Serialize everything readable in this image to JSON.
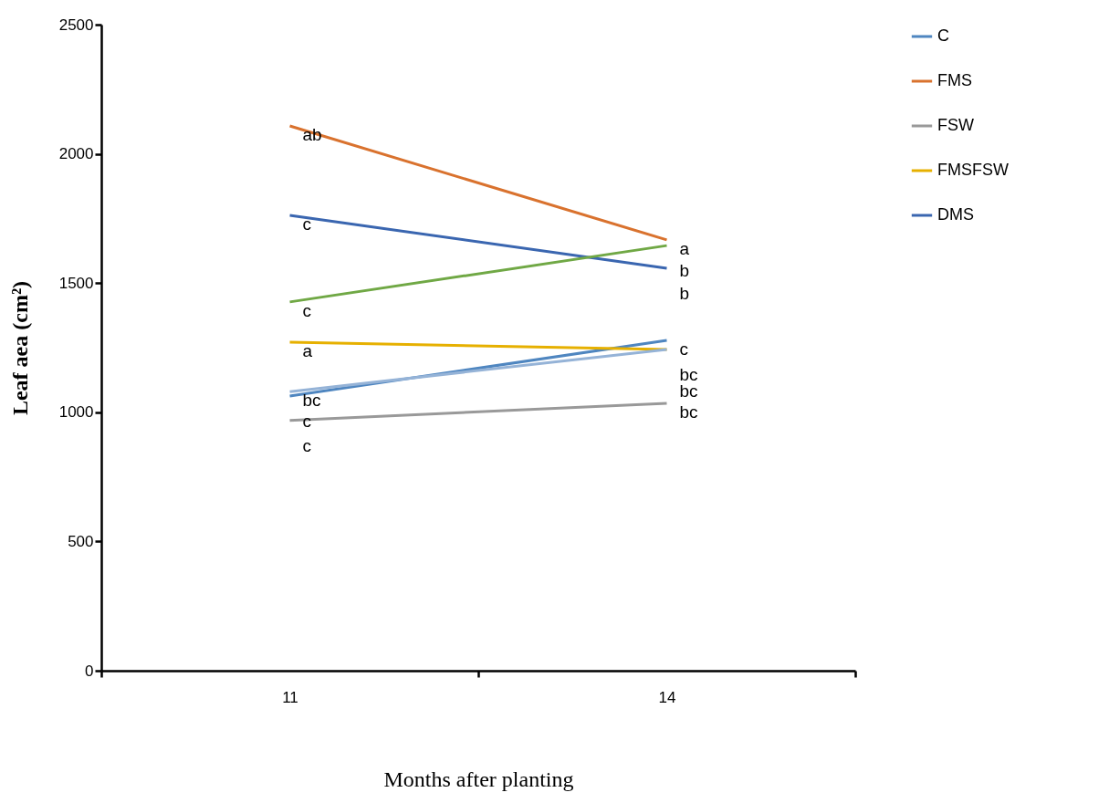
{
  "chart_data": {
    "type": "line",
    "xlabel": "Months after planting",
    "ylabel": "Leaf aea (cm²)",
    "categories": [
      "11",
      "14"
    ],
    "series": [
      {
        "name": "C",
        "color": "#4f86c0",
        "values": [
          1063,
          1278
        ]
      },
      {
        "name": "FMS",
        "color": "#d9722e",
        "values": [
          2108,
          1667
        ]
      },
      {
        "name": "FSW",
        "color": "#999999",
        "values": [
          968,
          1035
        ]
      },
      {
        "name": "FMSFSW",
        "color": "#e6b000",
        "values": [
          1271,
          1243
        ]
      },
      {
        "name": "DMS",
        "color": "#3a66b0",
        "values": [
          1762,
          1557
        ]
      },
      {
        "color": "#70a845",
        "values": [
          1427,
          1645
        ]
      },
      {
        "color": "#95b3d7",
        "values": [
          1080,
          1243
        ]
      }
    ],
    "ylim": [
      0,
      2500
    ],
    "yticks": [
      0,
      500,
      1000,
      1500,
      2000,
      2500
    ],
    "grid": false,
    "legend": "right",
    "marker": "none",
    "line_style": "solid",
    "annotations": [
      {
        "text": "ab",
        "x": "11",
        "y": 2108
      },
      {
        "text": "c",
        "x": "11",
        "y": 1762
      },
      {
        "text": "c",
        "x": "11",
        "y": 1427
      },
      {
        "text": "a",
        "x": "11",
        "y": 1271
      },
      {
        "text": "bc",
        "x": "11",
        "y": 1080
      },
      {
        "text": "c",
        "x": "11",
        "y": 1063
      },
      {
        "text": "c",
        "x": "11",
        "y": 968
      },
      {
        "text": "a",
        "x": "14",
        "y": 1667
      },
      {
        "text": "b",
        "x": "14",
        "y": 1645
      },
      {
        "text": "b",
        "x": "14",
        "y": 1557
      },
      {
        "text": "c",
        "x": "14",
        "y": 1278
      },
      {
        "text": "bc",
        "x": "14",
        "y": 1243
      },
      {
        "text": "bc",
        "x": "14",
        "y": 1243
      },
      {
        "text": "bc",
        "x": "14",
        "y": 1035
      }
    ]
  }
}
